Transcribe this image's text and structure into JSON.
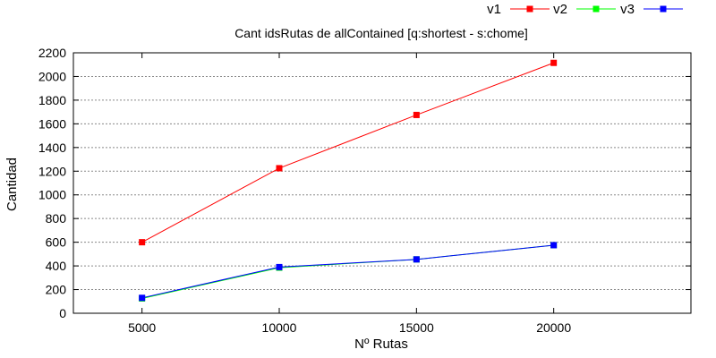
{
  "chart_data": {
    "type": "line",
    "title": "Cant idsRutas de allContained [q:shortest - s:chome]",
    "xlabel": "Nº Rutas",
    "ylabel": "Cantidad",
    "x": [
      5000,
      10000,
      15000,
      20000
    ],
    "xlim": [
      2500,
      25000
    ],
    "ylim": [
      0,
      2200
    ],
    "xticks": [
      5000,
      10000,
      15000,
      20000
    ],
    "yticks": [
      0,
      200,
      400,
      600,
      800,
      1000,
      1200,
      1400,
      1600,
      1800,
      2000,
      2200
    ],
    "grid": true,
    "legend_position": "top-right",
    "series": [
      {
        "name": "v1",
        "color": "#ff0000",
        "values": [
          600,
          1225,
          1675,
          2115
        ]
      },
      {
        "name": "v2",
        "color": "#00ff00",
        "values": [
          125,
          385,
          455,
          575
        ]
      },
      {
        "name": "v3",
        "color": "#0000ff",
        "values": [
          130,
          390,
          455,
          575
        ]
      }
    ]
  }
}
